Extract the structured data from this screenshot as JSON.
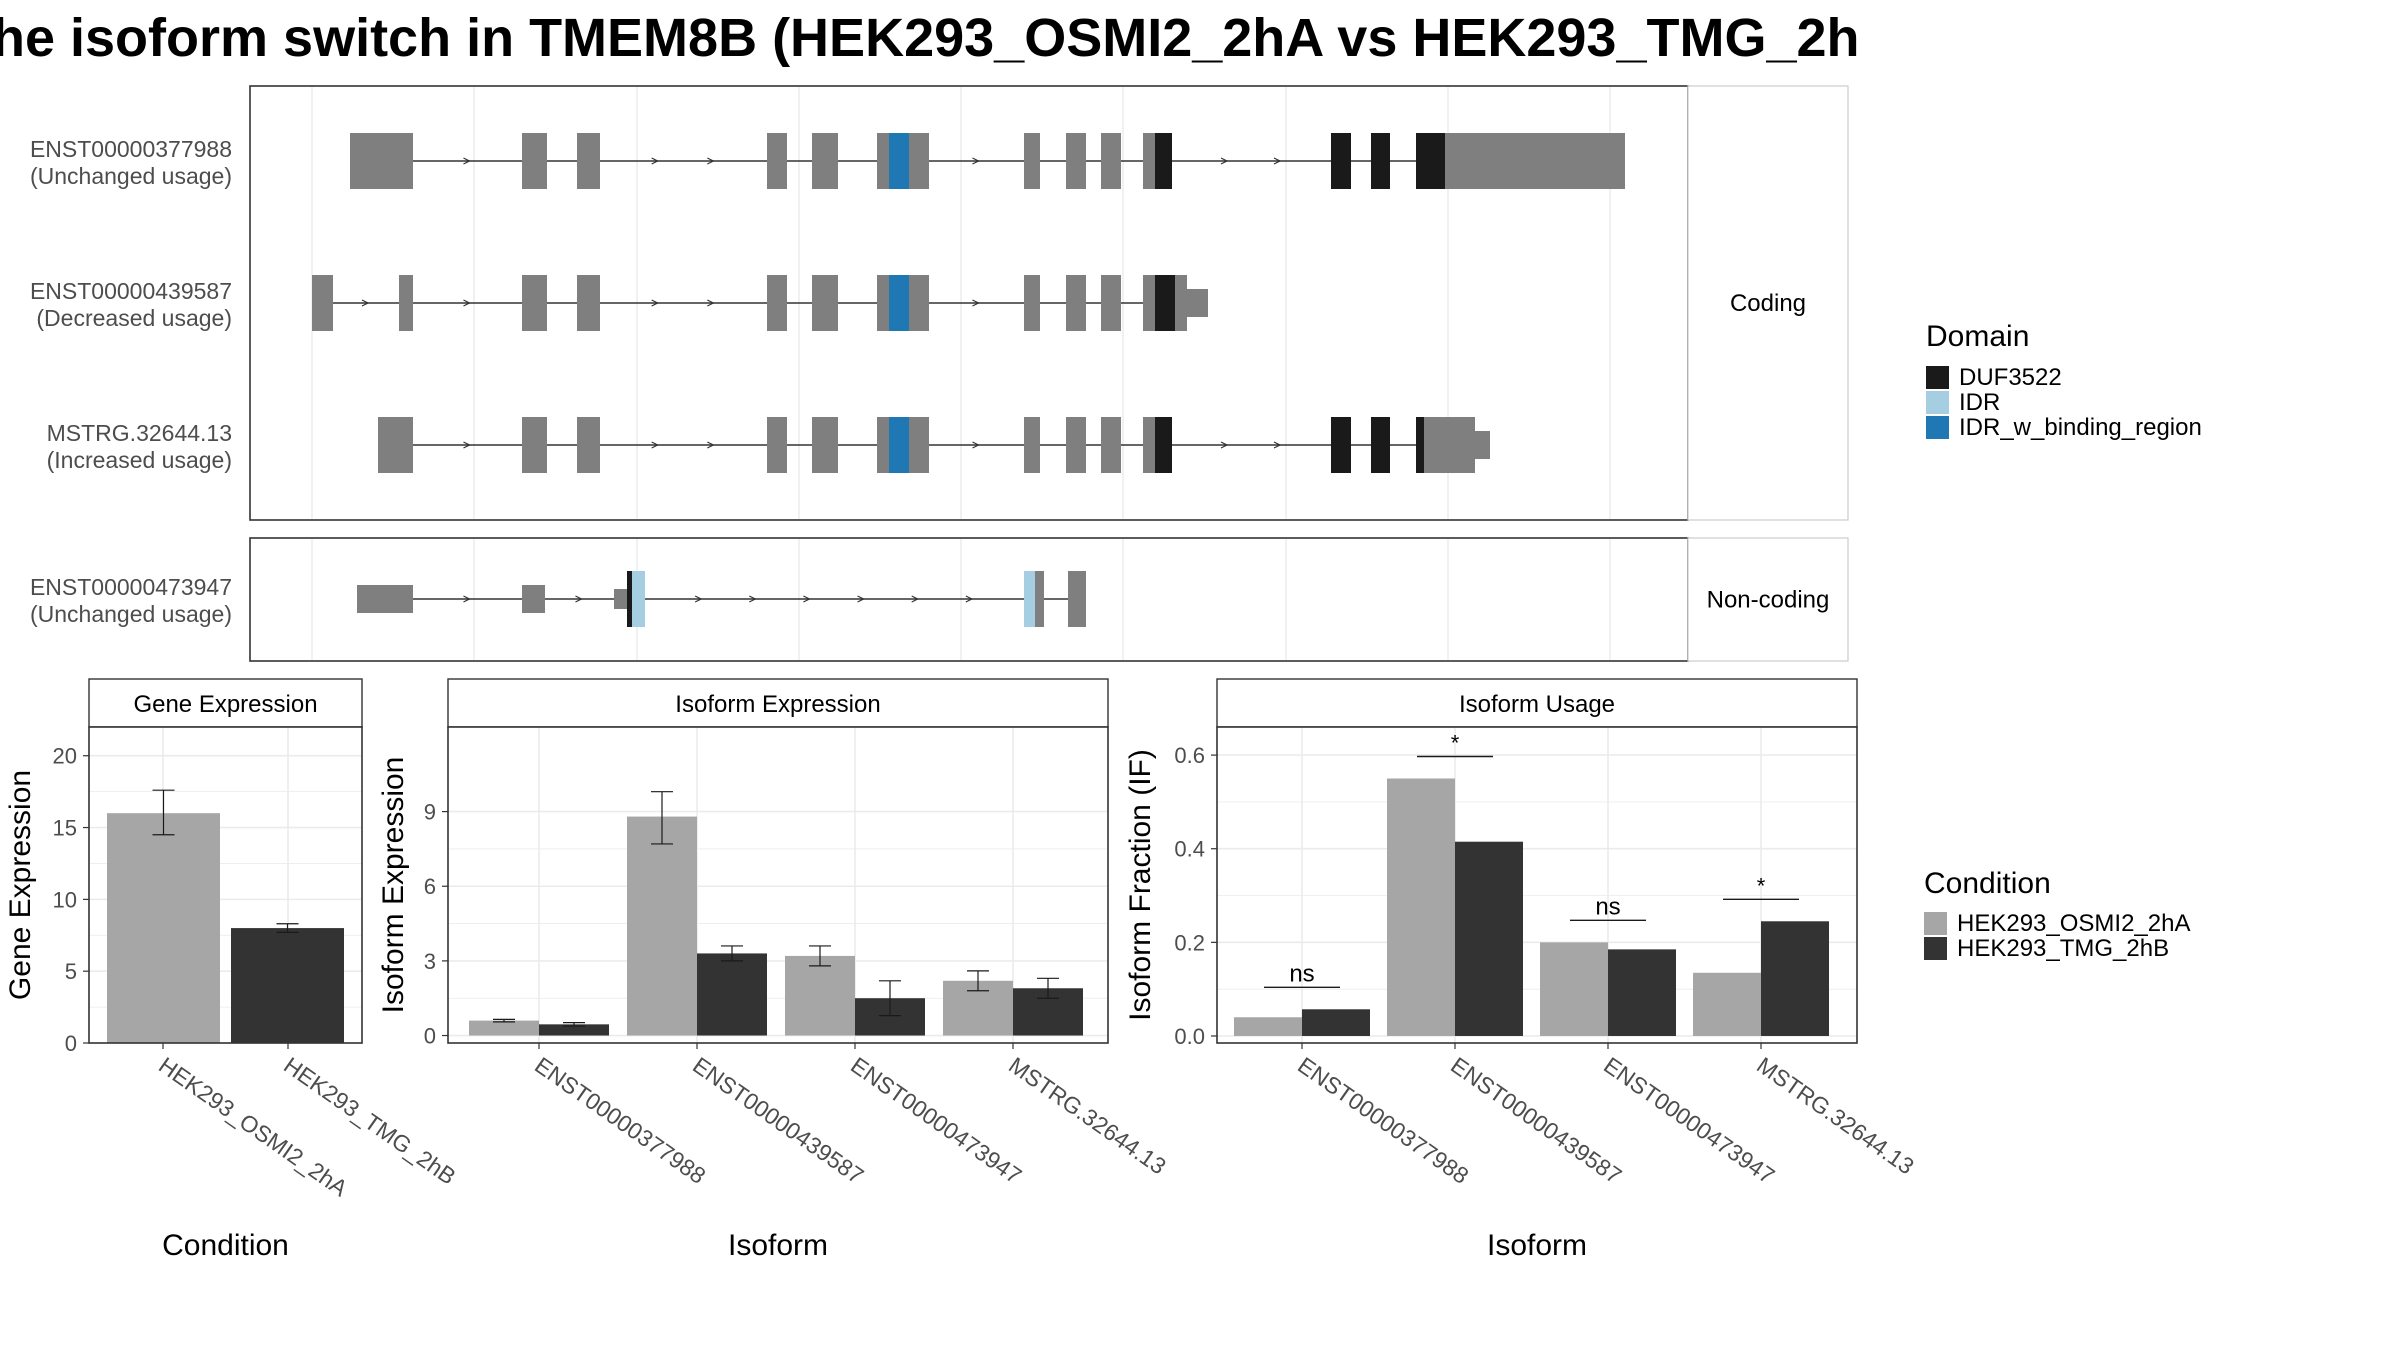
{
  "title": "he isoform switch in TMEM8B (HEK293_OSMI2_2hA vs HEK293_TMG_2h",
  "colors": {
    "exon": "#7f7f7f",
    "DUF3522": "#1a1a1a",
    "IDR": "#a6cee3",
    "IDR_w_binding_region": "#1f78b4",
    "cond1": "#a6a6a6",
    "cond2": "#333333",
    "grid": "#ebebeb"
  },
  "legend_domain": {
    "title": "Domain",
    "items": [
      {
        "label": "DUF3522",
        "color": "#1a1a1a"
      },
      {
        "label": "IDR",
        "color": "#a6cee3"
      },
      {
        "label": "IDR_w_binding_region",
        "color": "#1f78b4"
      }
    ]
  },
  "legend_condition": {
    "title": "Condition",
    "items": [
      {
        "label": "HEK293_OSMI2_2hA",
        "color": "#a6a6a6"
      },
      {
        "label": "HEK293_TMG_2hB",
        "color": "#333333"
      }
    ]
  },
  "structure": {
    "strips": [
      "Coding",
      "Non-coding"
    ],
    "transcripts": [
      {
        "name": "ENST00000377988",
        "usage": "(Unchanged usage)",
        "group": "Coding"
      },
      {
        "name": "ENST00000439587",
        "usage": "(Decreased usage)",
        "group": "Coding"
      },
      {
        "name": "MSTRG.32644.13",
        "usage": "(Increased usage)",
        "group": "Coding"
      },
      {
        "name": "ENST00000473947",
        "usage": "(Unchanged usage)",
        "group": "Non-coding"
      }
    ]
  },
  "chart_data": [
    {
      "type": "bar",
      "title": "Gene Expression",
      "xlabel": "Condition",
      "ylabel": "Gene Expression",
      "categories": [
        "HEK293_OSMI2_2hA",
        "HEK293_TMG_2hB"
      ],
      "values": [
        16.0,
        8.0
      ],
      "errors": [
        [
          14.5,
          17.6
        ],
        [
          7.7,
          8.3
        ]
      ],
      "ylim": [
        0,
        22
      ],
      "yticks": [
        0,
        5,
        10,
        15,
        20
      ]
    },
    {
      "type": "bar",
      "title": "Isoform Expression",
      "xlabel": "Isoform",
      "ylabel": "Isoform Expression",
      "categories": [
        "ENST00000377988",
        "ENST00000439587",
        "ENST00000473947",
        "MSTRG.32644.13"
      ],
      "series": [
        {
          "name": "HEK293_OSMI2_2hA",
          "values": [
            0.6,
            8.8,
            3.2,
            2.2
          ],
          "errors": [
            [
              0.55,
              0.65
            ],
            [
              7.7,
              9.8
            ],
            [
              2.8,
              3.6
            ],
            [
              1.8,
              2.6
            ]
          ]
        },
        {
          "name": "HEK293_TMG_2hB",
          "values": [
            0.45,
            3.3,
            1.5,
            1.9
          ],
          "errors": [
            [
              0.38,
              0.52
            ],
            [
              3.0,
              3.6
            ],
            [
              0.8,
              2.2
            ],
            [
              1.5,
              2.3
            ]
          ]
        }
      ],
      "ylim": [
        -0.3,
        12.4
      ],
      "yticks": [
        0,
        3,
        6,
        9
      ]
    },
    {
      "type": "bar",
      "title": "Isoform Usage",
      "xlabel": "Isoform",
      "ylabel": "Isoform Fraction (IF)",
      "categories": [
        "ENST00000377988",
        "ENST00000439587",
        "ENST00000473947",
        "MSTRG.32644.13"
      ],
      "series": [
        {
          "name": "HEK293_OSMI2_2hA",
          "values": [
            0.04,
            0.55,
            0.2,
            0.135
          ]
        },
        {
          "name": "HEK293_TMG_2hB",
          "values": [
            0.057,
            0.415,
            0.185,
            0.245
          ]
        }
      ],
      "significance": [
        "ns",
        "*",
        "ns",
        "*"
      ],
      "ylim": [
        -0.015,
        0.66
      ],
      "yticks": [
        "0.0",
        "0.2",
        "0.4",
        "0.6"
      ]
    }
  ]
}
